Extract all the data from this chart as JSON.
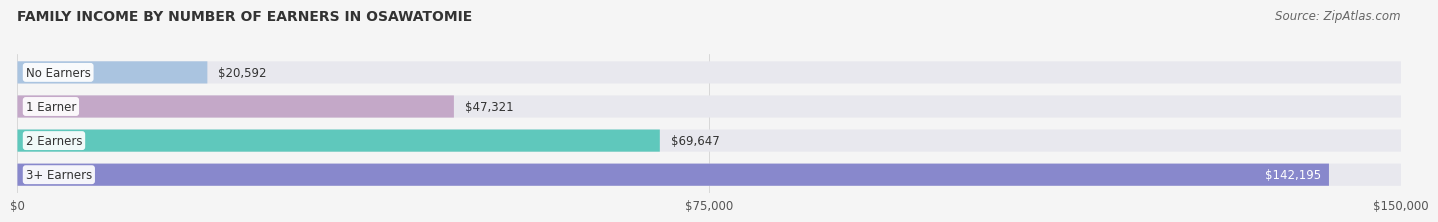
{
  "title": "FAMILY INCOME BY NUMBER OF EARNERS IN OSAWATOMIE",
  "source": "Source: ZipAtlas.com",
  "categories": [
    "No Earners",
    "1 Earner",
    "2 Earners",
    "3+ Earners"
  ],
  "values": [
    20592,
    47321,
    69647,
    142195
  ],
  "bar_colors": [
    "#aac4e0",
    "#c4a8c8",
    "#5fc8bc",
    "#8888cc"
  ],
  "bar_bg_color": "#e8e8ee",
  "xlim": [
    0,
    150000
  ],
  "xticks": [
    0,
    75000,
    150000
  ],
  "xtick_labels": [
    "$0",
    "$75,000",
    "$150,000"
  ],
  "fig_bg_color": "#f5f5f5",
  "title_fontsize": 10,
  "source_fontsize": 8.5,
  "bar_label_fontsize": 8.5,
  "value_label_fontsize": 8.5,
  "tick_fontsize": 8.5
}
